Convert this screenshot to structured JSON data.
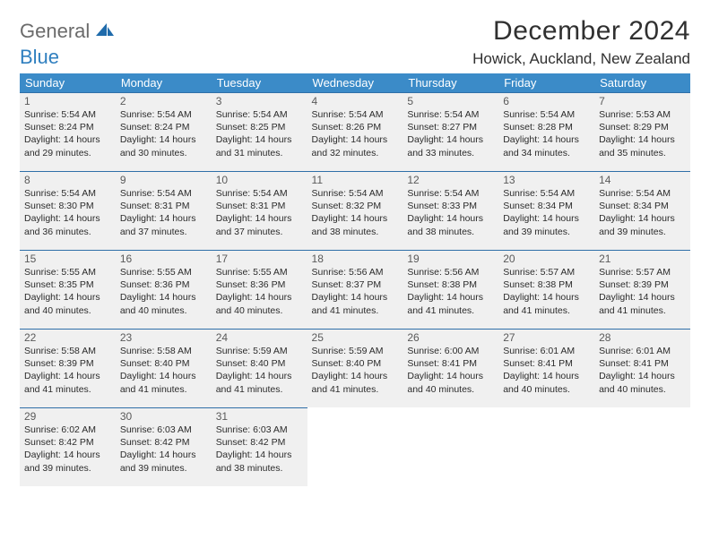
{
  "brand": {
    "general": "General",
    "blue": "Blue"
  },
  "title": "December 2024",
  "location": "Howick, Auckland, New Zealand",
  "colors": {
    "header_bg": "#3b8bc8",
    "header_text": "#ffffff",
    "cell_bg": "#f0f0f0",
    "cell_border": "#2f6fa8",
    "logo_general": "#6b6b6b",
    "logo_blue": "#2f7fbf",
    "page_bg": "#ffffff",
    "text": "#202020"
  },
  "weekdays": [
    "Sunday",
    "Monday",
    "Tuesday",
    "Wednesday",
    "Thursday",
    "Friday",
    "Saturday"
  ],
  "weeks": [
    [
      {
        "n": "1",
        "sr": "Sunrise: 5:54 AM",
        "ss": "Sunset: 8:24 PM",
        "d1": "Daylight: 14 hours",
        "d2": "and 29 minutes."
      },
      {
        "n": "2",
        "sr": "Sunrise: 5:54 AM",
        "ss": "Sunset: 8:24 PM",
        "d1": "Daylight: 14 hours",
        "d2": "and 30 minutes."
      },
      {
        "n": "3",
        "sr": "Sunrise: 5:54 AM",
        "ss": "Sunset: 8:25 PM",
        "d1": "Daylight: 14 hours",
        "d2": "and 31 minutes."
      },
      {
        "n": "4",
        "sr": "Sunrise: 5:54 AM",
        "ss": "Sunset: 8:26 PM",
        "d1": "Daylight: 14 hours",
        "d2": "and 32 minutes."
      },
      {
        "n": "5",
        "sr": "Sunrise: 5:54 AM",
        "ss": "Sunset: 8:27 PM",
        "d1": "Daylight: 14 hours",
        "d2": "and 33 minutes."
      },
      {
        "n": "6",
        "sr": "Sunrise: 5:54 AM",
        "ss": "Sunset: 8:28 PM",
        "d1": "Daylight: 14 hours",
        "d2": "and 34 minutes."
      },
      {
        "n": "7",
        "sr": "Sunrise: 5:53 AM",
        "ss": "Sunset: 8:29 PM",
        "d1": "Daylight: 14 hours",
        "d2": "and 35 minutes."
      }
    ],
    [
      {
        "n": "8",
        "sr": "Sunrise: 5:54 AM",
        "ss": "Sunset: 8:30 PM",
        "d1": "Daylight: 14 hours",
        "d2": "and 36 minutes."
      },
      {
        "n": "9",
        "sr": "Sunrise: 5:54 AM",
        "ss": "Sunset: 8:31 PM",
        "d1": "Daylight: 14 hours",
        "d2": "and 37 minutes."
      },
      {
        "n": "10",
        "sr": "Sunrise: 5:54 AM",
        "ss": "Sunset: 8:31 PM",
        "d1": "Daylight: 14 hours",
        "d2": "and 37 minutes."
      },
      {
        "n": "11",
        "sr": "Sunrise: 5:54 AM",
        "ss": "Sunset: 8:32 PM",
        "d1": "Daylight: 14 hours",
        "d2": "and 38 minutes."
      },
      {
        "n": "12",
        "sr": "Sunrise: 5:54 AM",
        "ss": "Sunset: 8:33 PM",
        "d1": "Daylight: 14 hours",
        "d2": "and 38 minutes."
      },
      {
        "n": "13",
        "sr": "Sunrise: 5:54 AM",
        "ss": "Sunset: 8:34 PM",
        "d1": "Daylight: 14 hours",
        "d2": "and 39 minutes."
      },
      {
        "n": "14",
        "sr": "Sunrise: 5:54 AM",
        "ss": "Sunset: 8:34 PM",
        "d1": "Daylight: 14 hours",
        "d2": "and 39 minutes."
      }
    ],
    [
      {
        "n": "15",
        "sr": "Sunrise: 5:55 AM",
        "ss": "Sunset: 8:35 PM",
        "d1": "Daylight: 14 hours",
        "d2": "and 40 minutes."
      },
      {
        "n": "16",
        "sr": "Sunrise: 5:55 AM",
        "ss": "Sunset: 8:36 PM",
        "d1": "Daylight: 14 hours",
        "d2": "and 40 minutes."
      },
      {
        "n": "17",
        "sr": "Sunrise: 5:55 AM",
        "ss": "Sunset: 8:36 PM",
        "d1": "Daylight: 14 hours",
        "d2": "and 40 minutes."
      },
      {
        "n": "18",
        "sr": "Sunrise: 5:56 AM",
        "ss": "Sunset: 8:37 PM",
        "d1": "Daylight: 14 hours",
        "d2": "and 41 minutes."
      },
      {
        "n": "19",
        "sr": "Sunrise: 5:56 AM",
        "ss": "Sunset: 8:38 PM",
        "d1": "Daylight: 14 hours",
        "d2": "and 41 minutes."
      },
      {
        "n": "20",
        "sr": "Sunrise: 5:57 AM",
        "ss": "Sunset: 8:38 PM",
        "d1": "Daylight: 14 hours",
        "d2": "and 41 minutes."
      },
      {
        "n": "21",
        "sr": "Sunrise: 5:57 AM",
        "ss": "Sunset: 8:39 PM",
        "d1": "Daylight: 14 hours",
        "d2": "and 41 minutes."
      }
    ],
    [
      {
        "n": "22",
        "sr": "Sunrise: 5:58 AM",
        "ss": "Sunset: 8:39 PM",
        "d1": "Daylight: 14 hours",
        "d2": "and 41 minutes."
      },
      {
        "n": "23",
        "sr": "Sunrise: 5:58 AM",
        "ss": "Sunset: 8:40 PM",
        "d1": "Daylight: 14 hours",
        "d2": "and 41 minutes."
      },
      {
        "n": "24",
        "sr": "Sunrise: 5:59 AM",
        "ss": "Sunset: 8:40 PM",
        "d1": "Daylight: 14 hours",
        "d2": "and 41 minutes."
      },
      {
        "n": "25",
        "sr": "Sunrise: 5:59 AM",
        "ss": "Sunset: 8:40 PM",
        "d1": "Daylight: 14 hours",
        "d2": "and 41 minutes."
      },
      {
        "n": "26",
        "sr": "Sunrise: 6:00 AM",
        "ss": "Sunset: 8:41 PM",
        "d1": "Daylight: 14 hours",
        "d2": "and 40 minutes."
      },
      {
        "n": "27",
        "sr": "Sunrise: 6:01 AM",
        "ss": "Sunset: 8:41 PM",
        "d1": "Daylight: 14 hours",
        "d2": "and 40 minutes."
      },
      {
        "n": "28",
        "sr": "Sunrise: 6:01 AM",
        "ss": "Sunset: 8:41 PM",
        "d1": "Daylight: 14 hours",
        "d2": "and 40 minutes."
      }
    ],
    [
      {
        "n": "29",
        "sr": "Sunrise: 6:02 AM",
        "ss": "Sunset: 8:42 PM",
        "d1": "Daylight: 14 hours",
        "d2": "and 39 minutes."
      },
      {
        "n": "30",
        "sr": "Sunrise: 6:03 AM",
        "ss": "Sunset: 8:42 PM",
        "d1": "Daylight: 14 hours",
        "d2": "and 39 minutes."
      },
      {
        "n": "31",
        "sr": "Sunrise: 6:03 AM",
        "ss": "Sunset: 8:42 PM",
        "d1": "Daylight: 14 hours",
        "d2": "and 38 minutes."
      },
      null,
      null,
      null,
      null
    ]
  ]
}
